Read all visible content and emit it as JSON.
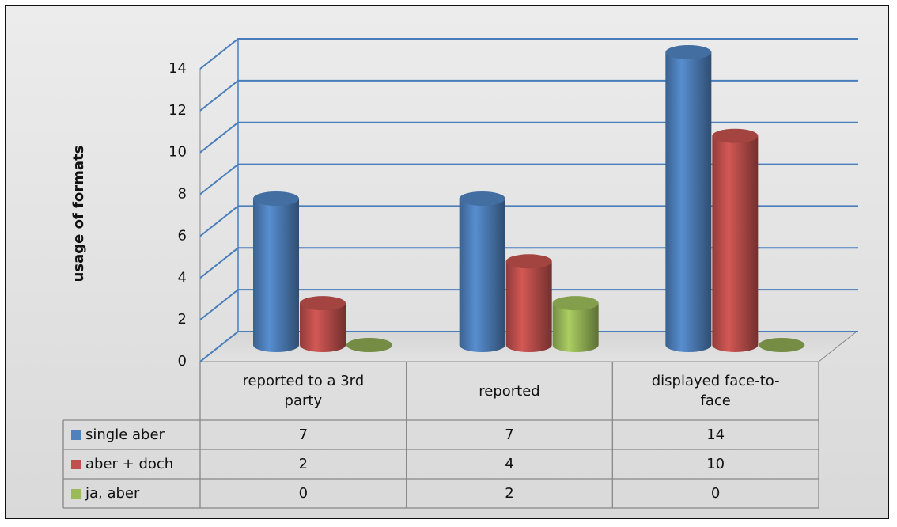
{
  "chart_data": {
    "type": "bar",
    "y_label": "usage of formats",
    "categories": [
      "reported to a 3rd party",
      "reported",
      "displayed face-to-face"
    ],
    "series": [
      {
        "name": "single aber",
        "color": "#4f81bd",
        "values": [
          7,
          7,
          14
        ]
      },
      {
        "name": "aber + doch",
        "color": "#c0504d",
        "values": [
          2,
          4,
          10
        ]
      },
      {
        "name": "ja, aber",
        "color": "#9bbb59",
        "values": [
          0,
          2,
          0
        ]
      }
    ],
    "ylim": [
      0,
      14
    ],
    "yticks": [
      0,
      2,
      4,
      6,
      8,
      10,
      12,
      14
    ],
    "grid": true,
    "legend": "table"
  }
}
